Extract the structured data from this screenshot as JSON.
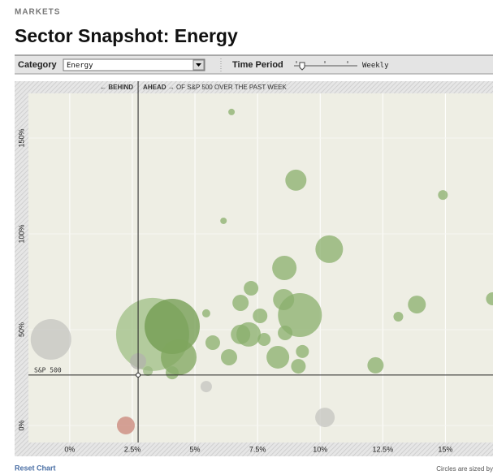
{
  "header": {
    "section": "MARKETS",
    "title": "Sector Snapshot: Energy"
  },
  "toolbar": {
    "category_label": "Category",
    "category_value": "Energy",
    "period_label": "Time Period",
    "period_value": "Weekly"
  },
  "chart_data": {
    "type": "bubble",
    "top_note": {
      "behind": "← BEHIND",
      "ahead": "AHEAD →",
      "rest": "OF S&P 500 OVER THE PAST WEEK"
    },
    "reference": {
      "name": "S&P 500",
      "x": 2.73,
      "y": 26.3
    },
    "x": [
      -0.75,
      2.24,
      3.31,
      4.09,
      4.35,
      2.73,
      4.09,
      3.12,
      5.45,
      5.45,
      6.46,
      6.14,
      9.03,
      10.36,
      8.57,
      7.24,
      6.82,
      7.6,
      8.54,
      9.19,
      5.71,
      6.36,
      7.14,
      6.82,
      7.76,
      8.31,
      8.6,
      9.29,
      9.13,
      12.21,
      13.86,
      13.12,
      14.9,
      16.88,
      10.19
    ],
    "values": [
      44.9,
      0,
      47.5,
      51.7,
      35.6,
      33.5,
      27.5,
      28.4,
      20.3,
      58.5,
      163.6,
      106.8,
      128,
      92,
      82.2,
      71.6,
      64,
      57.2,
      65.7,
      57.6,
      43.2,
      35.6,
      47.5,
      47.5,
      44.9,
      35.6,
      48.3,
      38.6,
      30.9,
      31.4,
      63.1,
      56.8,
      120.3,
      66.1,
      4.2
    ],
    "sizes": [
      25,
      11,
      45,
      34,
      22,
      10,
      8,
      6,
      7,
      5,
      4,
      4,
      13,
      17,
      15,
      9,
      10,
      9,
      13,
      27,
      9,
      10,
      15,
      12,
      8,
      14,
      9,
      8,
      9,
      10,
      11,
      6,
      6,
      8,
      12
    ],
    "colors": [
      "#c4c4c0",
      "#c98478",
      "#9fbf86",
      "#6f9a4e",
      "#7fa65e",
      "#b3b3ad",
      "#8aaf6c",
      "#9ab882",
      "#c4c4c0",
      "#8aaf6c",
      "#8aaf6c",
      "#8aaf6c",
      "#8aaf6c",
      "#8aaf6c",
      "#8aaf6c",
      "#8aaf6c",
      "#8aaf6c",
      "#8aaf6c",
      "#8aaf6c",
      "#8aaf6c",
      "#8aaf6c",
      "#8aaf6c",
      "#8aaf6c",
      "#8aaf6c",
      "#8aaf6c",
      "#8aaf6c",
      "#8aaf6c",
      "#8aaf6c",
      "#8aaf6c",
      "#8aaf6c",
      "#8aaf6c",
      "#8aaf6c",
      "#8aaf6c",
      "#8aaf6c",
      "#c4c4c0"
    ],
    "xlim": [
      -1.65,
      16.9
    ],
    "ylim": [
      -8.9,
      173.3
    ],
    "xticks": [
      {
        "value": 0,
        "label": "0%"
      },
      {
        "value": 2.5,
        "label": "2.5%"
      },
      {
        "value": 5,
        "label": "5%"
      },
      {
        "value": 7.5,
        "label": "7.5%"
      },
      {
        "value": 10,
        "label": "10%"
      },
      {
        "value": 12.5,
        "label": "12.5%"
      },
      {
        "value": 15,
        "label": "15%"
      }
    ],
    "yticks": [
      {
        "value": 0,
        "label": "0%"
      },
      {
        "value": 50,
        "label": "50%"
      },
      {
        "value": 100,
        "label": "100%"
      },
      {
        "value": 150,
        "label": "150%"
      }
    ],
    "grid": true
  },
  "footer": {
    "reset": "Reset Chart",
    "note": "Circles are sized by"
  }
}
